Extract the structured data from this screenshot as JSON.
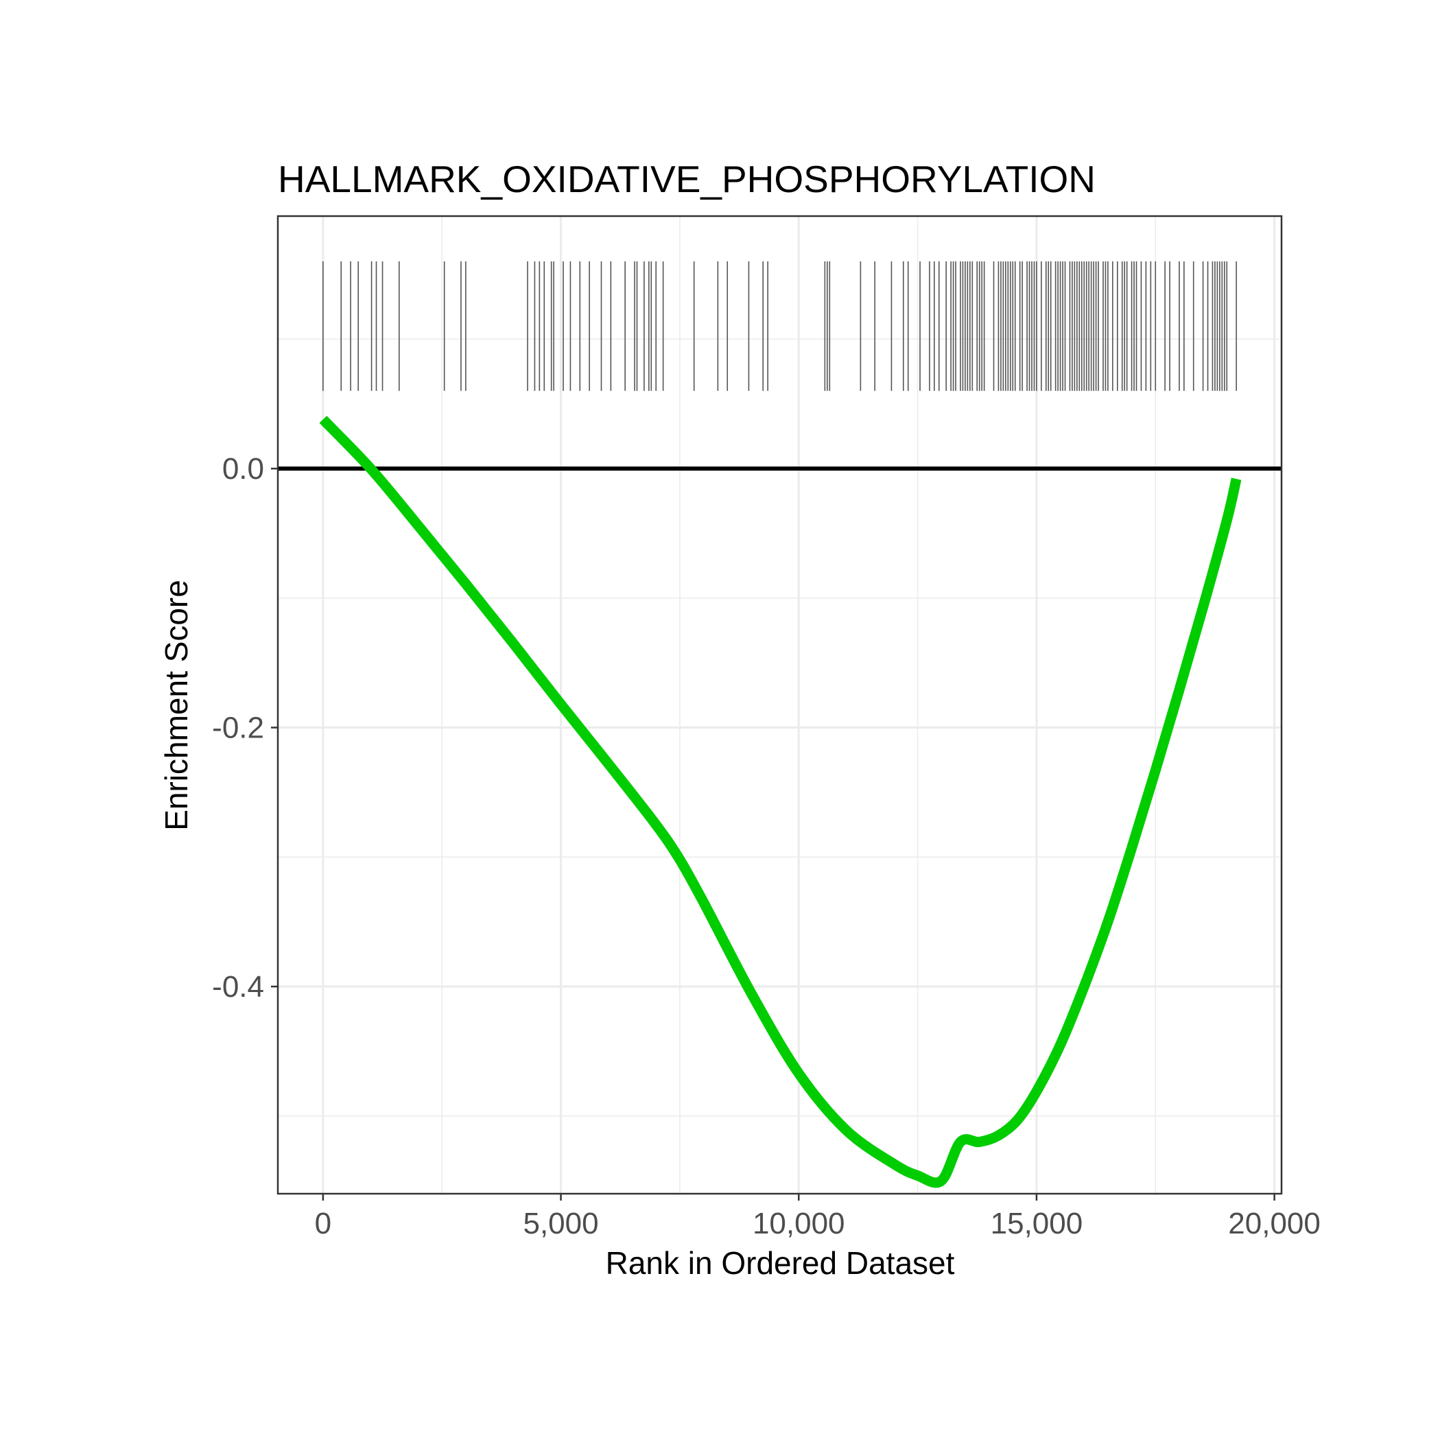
{
  "chart_data": {
    "type": "line",
    "title": "HALLMARK_OXIDATIVE_PHOSPHORYLATION",
    "xlabel": "Rank in Ordered Dataset",
    "ylabel": "Enrichment Score",
    "xlim": [
      -950,
      20150
    ],
    "ylim": [
      -0.56,
      0.195
    ],
    "x_ticks": [
      0,
      5000,
      10000,
      15000,
      20000
    ],
    "x_tick_labels": [
      "0",
      "5,000",
      "10,000",
      "15,000",
      "20,000"
    ],
    "y_ticks": [
      0.0,
      -0.2,
      -0.4
    ],
    "y_tick_labels": [
      "0.0",
      "-0.2",
      "-0.4"
    ],
    "grid": true,
    "zero_line": 0,
    "line_color": "#00cc00",
    "series": [
      {
        "x": [
          0,
          1000,
          2000,
          3000,
          4000,
          5000,
          6000,
          7000,
          7500,
          8000,
          9000,
          10000,
          11000,
          12000,
          12500,
          13000,
          13400,
          13800,
          14200,
          14600,
          15000,
          15500,
          16000,
          16500,
          17000,
          17500,
          18000,
          18500,
          19000,
          19200
        ],
        "y": [
          0.038,
          0.0,
          -0.044,
          -0.089,
          -0.135,
          -0.182,
          -0.228,
          -0.275,
          -0.302,
          -0.335,
          -0.405,
          -0.467,
          -0.511,
          -0.537,
          -0.546,
          -0.55,
          -0.52,
          -0.52,
          -0.515,
          -0.503,
          -0.481,
          -0.445,
          -0.4,
          -0.35,
          -0.293,
          -0.233,
          -0.171,
          -0.107,
          -0.04,
          -0.008
        ]
      }
    ],
    "gene_hits": [
      0,
      380,
      580,
      740,
      1020,
      1120,
      1250,
      1600,
      2550,
      2900,
      3000,
      4300,
      4450,
      4550,
      4650,
      4800,
      4850,
      5050,
      5200,
      5400,
      5600,
      5850,
      6050,
      6350,
      6550,
      6600,
      6750,
      6850,
      6900,
      7000,
      7150,
      7800,
      8300,
      8500,
      8950,
      9250,
      9350,
      10550,
      10600,
      10650,
      11300,
      11600,
      11950,
      12200,
      12300,
      12550,
      12750,
      12850,
      12950,
      13100,
      13200,
      13250,
      13300,
      13400,
      13450,
      13500,
      13550,
      13600,
      13650,
      13750,
      13800,
      13850,
      13900,
      14100,
      14200,
      14250,
      14300,
      14350,
      14400,
      14450,
      14500,
      14550,
      14650,
      14700,
      14800,
      14850,
      14900,
      14950,
      15000,
      15100,
      15200,
      15250,
      15300,
      15400,
      15450,
      15500,
      15550,
      15600,
      15700,
      15750,
      15800,
      15850,
      15900,
      15950,
      16000,
      16050,
      16100,
      16150,
      16200,
      16250,
      16300,
      16400,
      16450,
      16500,
      16600,
      16700,
      16800,
      16850,
      16900,
      17000,
      17050,
      17100,
      17200,
      17300,
      17400,
      17500,
      17700,
      17800,
      18000,
      18100,
      18300,
      18500,
      18600,
      18700,
      18750,
      18800,
      18850,
      18900,
      18950,
      19000,
      19200
    ],
    "hit_band": [
      0.06,
      0.16
    ]
  }
}
